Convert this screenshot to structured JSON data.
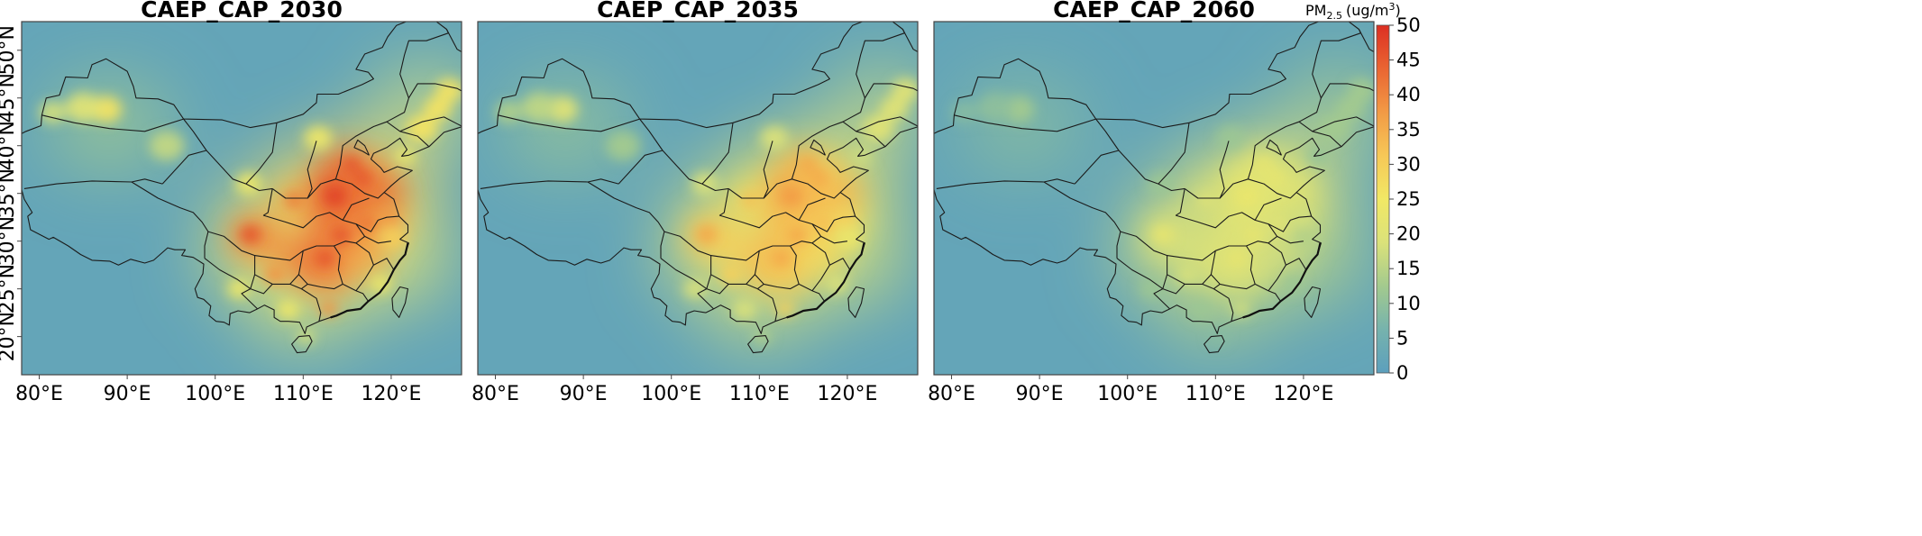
{
  "figure": {
    "variable": "PM",
    "variable_sub": "2.5",
    "unit": "(ug/m",
    "unit_sup": "3",
    "unit_close": ")"
  },
  "panels": [
    {
      "title": "CAEP_CAP_2030",
      "intensity": 1.0
    },
    {
      "title": "CAEP_CAP_2035",
      "intensity": 0.78
    },
    {
      "title": "CAEP_CAP_2060",
      "intensity": 0.48
    }
  ],
  "axes": {
    "lon_ticks": [
      {
        "value": 80,
        "label": "80°E"
      },
      {
        "value": 90,
        "label": "90°E"
      },
      {
        "value": 100,
        "label": "100°E"
      },
      {
        "value": 110,
        "label": "110°E"
      },
      {
        "value": 120,
        "label": "120°E"
      }
    ],
    "lat_ticks": [
      {
        "value": 20,
        "label": "20°N"
      },
      {
        "value": 25,
        "label": "25°N"
      },
      {
        "value": 30,
        "label": "30°N"
      },
      {
        "value": 35,
        "label": "35°N"
      },
      {
        "value": 40,
        "label": "40°N"
      },
      {
        "value": 45,
        "label": "45°N"
      },
      {
        "value": 50,
        "label": "50°N"
      }
    ],
    "lon_range": [
      78,
      128
    ],
    "lat_range": [
      16,
      53
    ]
  },
  "colorbar": {
    "min": 0,
    "max": 50,
    "ticks": [
      "0",
      "5",
      "10",
      "15",
      "20",
      "25",
      "30",
      "35",
      "40",
      "45",
      "50"
    ],
    "colors": [
      "#5c9fbd",
      "#76b3ad",
      "#a3ca8e",
      "#dbe27a",
      "#f1e865",
      "#f6c857",
      "#f29a45",
      "#ea6532",
      "#dc2f22"
    ]
  }
}
